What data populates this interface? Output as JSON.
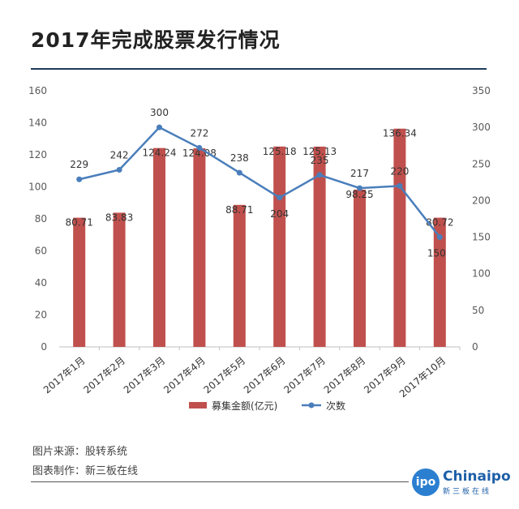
{
  "title": "2017年完成股票发行情况",
  "footer": {
    "source": "图片来源：股转系统",
    "made_by": "图表制作：新三板在线"
  },
  "logo": {
    "badge": "ipo",
    "name": "Chinaipo",
    "subtitle": "新三板在线"
  },
  "chart_data": {
    "type": "bar",
    "categories": [
      "2017年1月",
      "2017年2月",
      "2017年3月",
      "2017年4月",
      "2017年5月",
      "2017年6月",
      "2017年7月",
      "2017年8月",
      "2017年9月",
      "2017年10月"
    ],
    "series": [
      {
        "name": "募集金额(亿元)",
        "type": "bar",
        "axis": "left",
        "color": "#c0504d",
        "values": [
          80.71,
          83.83,
          124.24,
          124.08,
          88.71,
          125.18,
          125.13,
          98.25,
          136.34,
          80.72
        ],
        "labels": [
          "80.71",
          "83.83",
          "124.24",
          "124.08",
          "88.71",
          "125.18",
          "125.13",
          "98.25",
          "136.34",
          "80.72"
        ]
      },
      {
        "name": "次数",
        "type": "line",
        "axis": "right",
        "color": "#4a7ebb",
        "values": [
          229,
          242,
          300,
          272,
          238,
          204,
          235,
          217,
          220,
          150
        ],
        "labels": [
          "229",
          "242",
          "300",
          "272",
          "238",
          "204",
          "235",
          "217",
          "220",
          "150"
        ]
      }
    ],
    "ylim_left": [
      0,
      160
    ],
    "yticks_left": [
      "0",
      "20",
      "40",
      "60",
      "80",
      "100",
      "120",
      "140",
      "160"
    ],
    "ylim_right": [
      0,
      350
    ],
    "yticks_right": [
      "0",
      "50",
      "100",
      "150",
      "200",
      "250",
      "300",
      "350"
    ],
    "grid": false,
    "legend_position": "bottom"
  }
}
